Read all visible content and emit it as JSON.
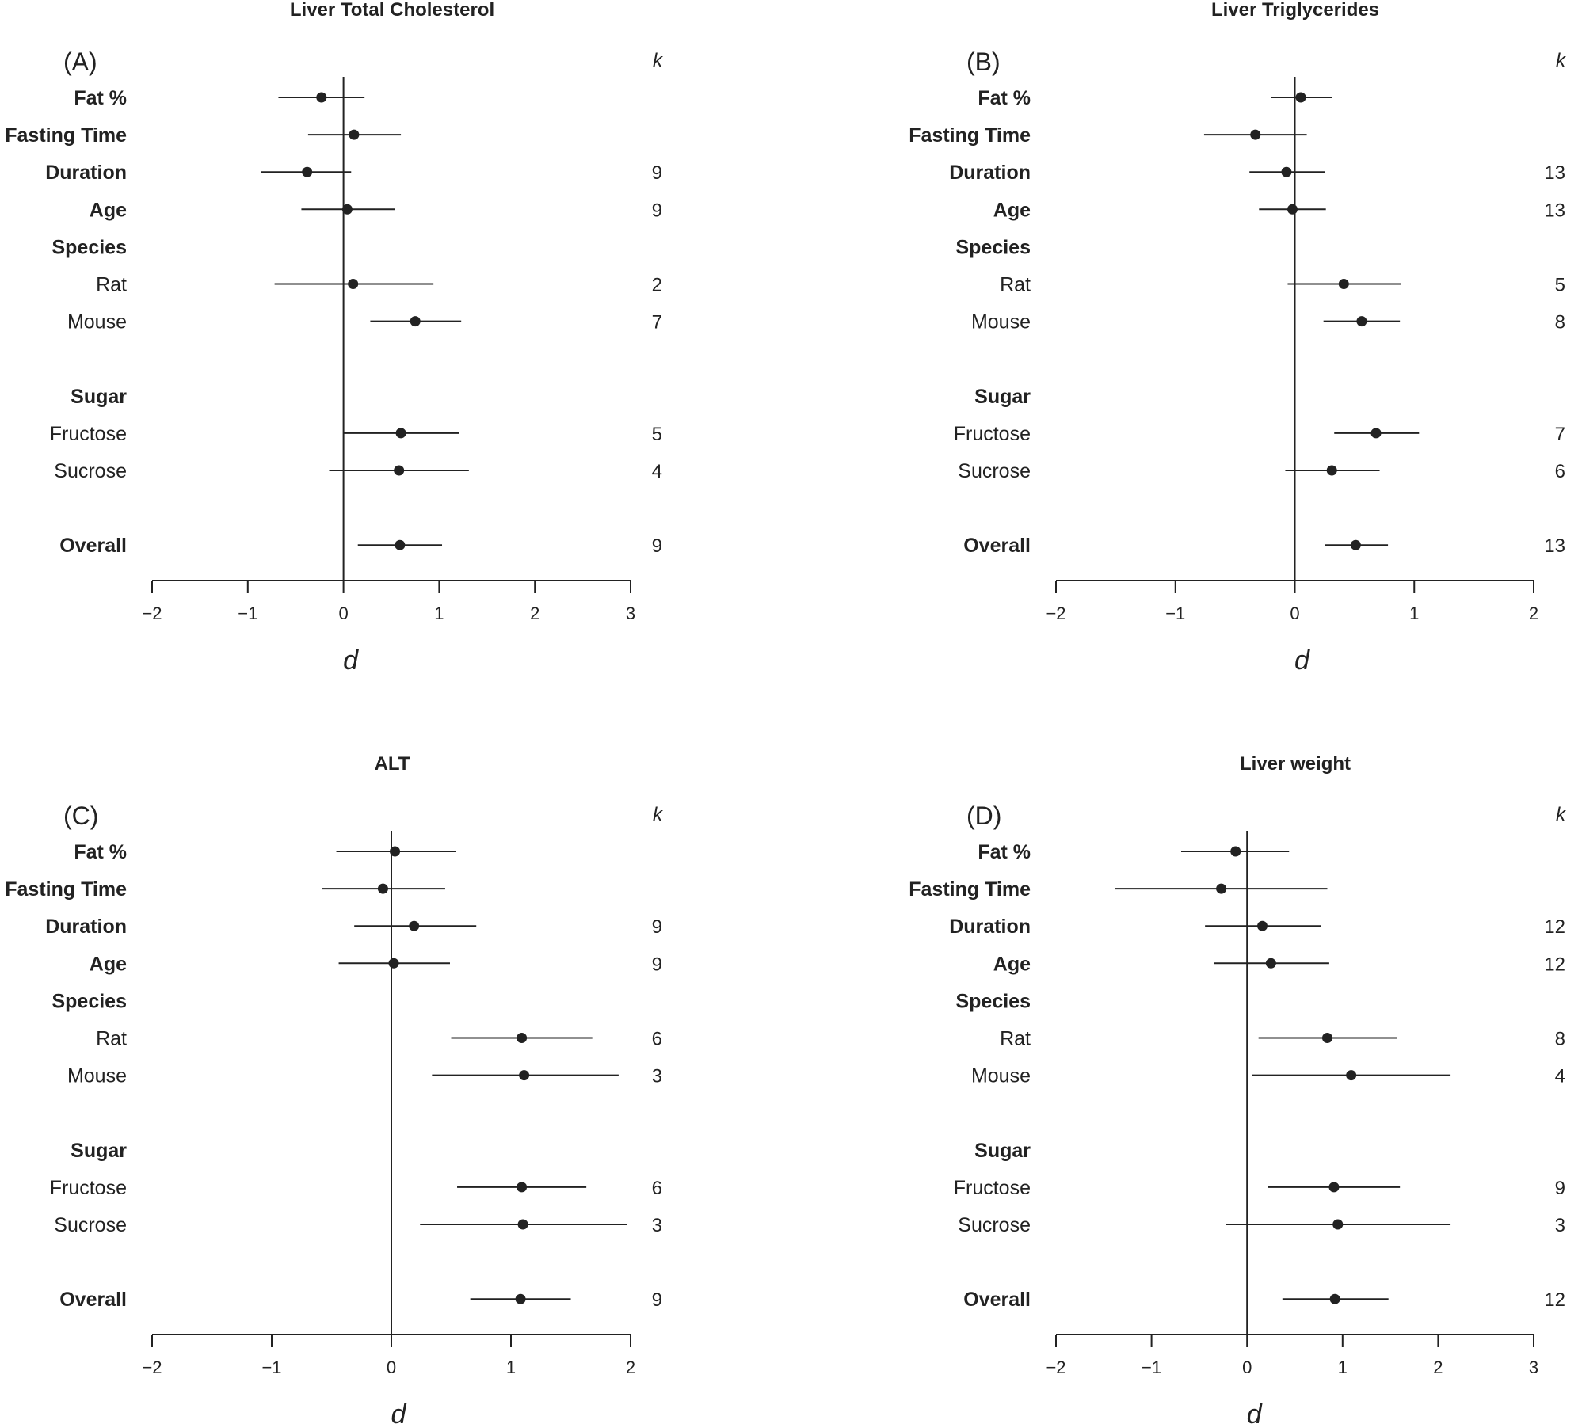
{
  "figure": {
    "x_tick_minus_sign": "−"
  },
  "chart_data": [
    {
      "type": "forest",
      "panel_label": "(A)",
      "title": "Liver Total Cholesterol",
      "xlabel": "d",
      "k_header": "k",
      "xlim": [
        -2,
        3
      ],
      "xticks": [
        -2,
        -1,
        0,
        1,
        2,
        3
      ],
      "rows": [
        {
          "label": "Fat %",
          "bold": true,
          "slot": 0,
          "estimate": -0.23,
          "lower": -0.68,
          "upper": 0.22,
          "k": ""
        },
        {
          "label": "Fasting Time",
          "bold": true,
          "slot": 1,
          "estimate": 0.11,
          "lower": -0.37,
          "upper": 0.6,
          "k": ""
        },
        {
          "label": "Duration",
          "bold": true,
          "slot": 2,
          "estimate": -0.38,
          "lower": -0.86,
          "upper": 0.08,
          "k": "9"
        },
        {
          "label": "Age",
          "bold": true,
          "slot": 3,
          "estimate": 0.04,
          "lower": -0.44,
          "upper": 0.54,
          "k": "9"
        },
        {
          "label": "Species",
          "bold": true,
          "slot": 4,
          "estimate": null,
          "lower": null,
          "upper": null,
          "k": ""
        },
        {
          "label": "Rat",
          "bold": false,
          "slot": 5,
          "estimate": 0.1,
          "lower": -0.72,
          "upper": 0.94,
          "k": "2"
        },
        {
          "label": "Mouse",
          "bold": false,
          "slot": 6,
          "estimate": 0.75,
          "lower": 0.28,
          "upper": 1.23,
          "k": "7"
        },
        {
          "label": "Sugar",
          "bold": true,
          "slot": 8,
          "estimate": null,
          "lower": null,
          "upper": null,
          "k": ""
        },
        {
          "label": "Fructose",
          "bold": false,
          "slot": 9,
          "estimate": 0.6,
          "lower": 0.0,
          "upper": 1.21,
          "k": "5"
        },
        {
          "label": "Sucrose",
          "bold": false,
          "slot": 10,
          "estimate": 0.58,
          "lower": -0.15,
          "upper": 1.31,
          "k": "4"
        },
        {
          "label": "Overall",
          "bold": true,
          "slot": 12,
          "estimate": 0.59,
          "lower": 0.15,
          "upper": 1.03,
          "k": "9"
        }
      ]
    },
    {
      "type": "forest",
      "panel_label": "(B)",
      "title": "Liver Triglycerides",
      "xlabel": "d",
      "k_header": "k",
      "xlim": [
        -2,
        2
      ],
      "xticks": [
        -2,
        -1,
        0,
        1,
        2
      ],
      "rows": [
        {
          "label": "Fat %",
          "bold": true,
          "slot": 0,
          "estimate": 0.05,
          "lower": -0.2,
          "upper": 0.31,
          "k": ""
        },
        {
          "label": "Fasting Time",
          "bold": true,
          "slot": 1,
          "estimate": -0.33,
          "lower": -0.76,
          "upper": 0.1,
          "k": ""
        },
        {
          "label": "Duration",
          "bold": true,
          "slot": 2,
          "estimate": -0.07,
          "lower": -0.38,
          "upper": 0.25,
          "k": "13"
        },
        {
          "label": "Age",
          "bold": true,
          "slot": 3,
          "estimate": -0.02,
          "lower": -0.3,
          "upper": 0.26,
          "k": "13"
        },
        {
          "label": "Species",
          "bold": true,
          "slot": 4,
          "estimate": null,
          "lower": null,
          "upper": null,
          "k": ""
        },
        {
          "label": "Rat",
          "bold": false,
          "slot": 5,
          "estimate": 0.41,
          "lower": -0.06,
          "upper": 0.89,
          "k": "5"
        },
        {
          "label": "Mouse",
          "bold": false,
          "slot": 6,
          "estimate": 0.56,
          "lower": 0.24,
          "upper": 0.88,
          "k": "8"
        },
        {
          "label": "Sugar",
          "bold": true,
          "slot": 8,
          "estimate": null,
          "lower": null,
          "upper": null,
          "k": ""
        },
        {
          "label": "Fructose",
          "bold": false,
          "slot": 9,
          "estimate": 0.68,
          "lower": 0.33,
          "upper": 1.04,
          "k": "7"
        },
        {
          "label": "Sucrose",
          "bold": false,
          "slot": 10,
          "estimate": 0.31,
          "lower": -0.08,
          "upper": 0.71,
          "k": "6"
        },
        {
          "label": "Overall",
          "bold": true,
          "slot": 12,
          "estimate": 0.51,
          "lower": 0.25,
          "upper": 0.78,
          "k": "13"
        }
      ]
    },
    {
      "type": "forest",
      "panel_label": "(C)",
      "title": "ALT",
      "xlabel": "d",
      "k_header": "k",
      "xlim": [
        -2,
        2
      ],
      "xticks": [
        -2,
        -1,
        0,
        1,
        2
      ],
      "rows": [
        {
          "label": "Fat %",
          "bold": true,
          "slot": 0,
          "estimate": 0.03,
          "lower": -0.46,
          "upper": 0.54,
          "k": ""
        },
        {
          "label": "Fasting Time",
          "bold": true,
          "slot": 1,
          "estimate": -0.07,
          "lower": -0.58,
          "upper": 0.45,
          "k": ""
        },
        {
          "label": "Duration",
          "bold": true,
          "slot": 2,
          "estimate": 0.19,
          "lower": -0.31,
          "upper": 0.71,
          "k": "9"
        },
        {
          "label": "Age",
          "bold": true,
          "slot": 3,
          "estimate": 0.02,
          "lower": -0.44,
          "upper": 0.49,
          "k": "9"
        },
        {
          "label": "Species",
          "bold": true,
          "slot": 4,
          "estimate": null,
          "lower": null,
          "upper": null,
          "k": ""
        },
        {
          "label": "Rat",
          "bold": false,
          "slot": 5,
          "estimate": 1.09,
          "lower": 0.5,
          "upper": 1.68,
          "k": "6"
        },
        {
          "label": "Mouse",
          "bold": false,
          "slot": 6,
          "estimate": 1.11,
          "lower": 0.34,
          "upper": 1.9,
          "k": "3"
        },
        {
          "label": "Sugar",
          "bold": true,
          "slot": 8,
          "estimate": null,
          "lower": null,
          "upper": null,
          "k": ""
        },
        {
          "label": "Fructose",
          "bold": false,
          "slot": 9,
          "estimate": 1.09,
          "lower": 0.55,
          "upper": 1.63,
          "k": "6"
        },
        {
          "label": "Sucrose",
          "bold": false,
          "slot": 10,
          "estimate": 1.1,
          "lower": 0.24,
          "upper": 1.97,
          "k": "3"
        },
        {
          "label": "Overall",
          "bold": true,
          "slot": 12,
          "estimate": 1.08,
          "lower": 0.66,
          "upper": 1.5,
          "k": "9"
        }
      ]
    },
    {
      "type": "forest",
      "panel_label": "(D)",
      "title": "Liver weight",
      "xlabel": "d",
      "k_header": "k",
      "xlim": [
        -2,
        3
      ],
      "xticks": [
        -2,
        -1,
        0,
        1,
        2,
        3
      ],
      "rows": [
        {
          "label": "Fat %",
          "bold": true,
          "slot": 0,
          "estimate": -0.12,
          "lower": -0.69,
          "upper": 0.44,
          "k": ""
        },
        {
          "label": "Fasting Time",
          "bold": true,
          "slot": 1,
          "estimate": -0.27,
          "lower": -1.38,
          "upper": 0.84,
          "k": ""
        },
        {
          "label": "Duration",
          "bold": true,
          "slot": 2,
          "estimate": 0.16,
          "lower": -0.44,
          "upper": 0.77,
          "k": "12"
        },
        {
          "label": "Age",
          "bold": true,
          "slot": 3,
          "estimate": 0.25,
          "lower": -0.35,
          "upper": 0.86,
          "k": "12"
        },
        {
          "label": "Species",
          "bold": true,
          "slot": 4,
          "estimate": null,
          "lower": null,
          "upper": null,
          "k": ""
        },
        {
          "label": "Rat",
          "bold": false,
          "slot": 5,
          "estimate": 0.84,
          "lower": 0.12,
          "upper": 1.57,
          "k": "8"
        },
        {
          "label": "Mouse",
          "bold": false,
          "slot": 6,
          "estimate": 1.09,
          "lower": 0.05,
          "upper": 2.13,
          "k": "4"
        },
        {
          "label": "Sugar",
          "bold": true,
          "slot": 8,
          "estimate": null,
          "lower": null,
          "upper": null,
          "k": ""
        },
        {
          "label": "Fructose",
          "bold": false,
          "slot": 9,
          "estimate": 0.91,
          "lower": 0.22,
          "upper": 1.6,
          "k": "9"
        },
        {
          "label": "Sucrose",
          "bold": false,
          "slot": 10,
          "estimate": 0.95,
          "lower": -0.22,
          "upper": 2.13,
          "k": "3"
        },
        {
          "label": "Overall",
          "bold": true,
          "slot": 12,
          "estimate": 0.92,
          "lower": 0.37,
          "upper": 1.48,
          "k": "12"
        }
      ]
    }
  ]
}
